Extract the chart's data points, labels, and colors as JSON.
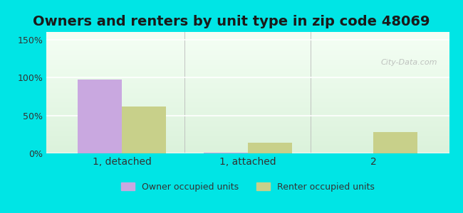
{
  "title": "Owners and renters by unit type in zip code 48069",
  "categories": [
    "1, detached",
    "1, attached",
    "2"
  ],
  "owner_values": [
    97,
    1,
    0
  ],
  "renter_values": [
    62,
    14,
    28
  ],
  "owner_color": "#c9a8e0",
  "renter_color": "#c8d08a",
  "yticks": [
    0,
    50,
    100,
    150
  ],
  "ytick_labels": [
    "0%",
    "50%",
    "100%",
    "150%"
  ],
  "ylim": [
    0,
    160
  ],
  "legend_owner": "Owner occupied units",
  "legend_renter": "Renter occupied units",
  "bg_outer": "#00e5e5",
  "bar_width": 0.35,
  "title_fontsize": 14,
  "watermark": "City-Data.com"
}
